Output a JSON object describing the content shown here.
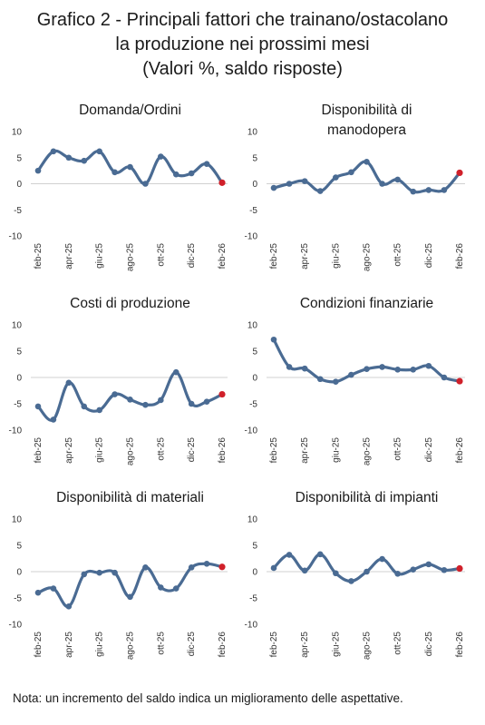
{
  "header": {
    "title_line1": "Grafico 2 - Principali fattori che trainano/ostacolano",
    "title_line2": "la produzione nei prossimi mesi",
    "title_line3": "(Valori %, saldo risposte)"
  },
  "note": "Nota: un incremento del saldo indica un miglioramento delle aspettative.",
  "colors": {
    "line": "#4a6b93",
    "last_point": "#d0202a",
    "zero_line": "#d0d0d0"
  },
  "chart_data": [
    {
      "type": "line",
      "title_lines": [
        "Domanda/Ordini"
      ],
      "x": [
        "feb-25",
        "mar-25",
        "apr-25",
        "mag-25",
        "giu-25",
        "lug-25",
        "ago-25",
        "set-25",
        "ott-25",
        "nov-25",
        "dic-25",
        "gen-26",
        "feb-26"
      ],
      "x_tick_labels": [
        "feb-25",
        "apr-25",
        "giu-25",
        "ago-25",
        "ott-25",
        "dic-25",
        "feb-26"
      ],
      "y_ticks": [
        10,
        5,
        0,
        -5,
        -10
      ],
      "ylim": [
        -10,
        10
      ],
      "values": [
        2.5,
        6.2,
        5.0,
        4.4,
        6.2,
        2.2,
        3.2,
        0.0,
        5.2,
        1.8,
        2.0,
        3.8,
        0.2
      ]
    },
    {
      "type": "line",
      "title_lines": [
        "Disponibilità di",
        "manodopera"
      ],
      "x": [
        "feb-25",
        "mar-25",
        "apr-25",
        "mag-25",
        "giu-25",
        "lug-25",
        "ago-25",
        "set-25",
        "ott-25",
        "nov-25",
        "dic-25",
        "gen-26",
        "feb-26"
      ],
      "x_tick_labels": [
        "feb-25",
        "apr-25",
        "giu-25",
        "ago-25",
        "ott-25",
        "dic-25",
        "feb-26"
      ],
      "y_ticks": [
        10,
        5,
        0,
        -5,
        -10
      ],
      "ylim": [
        -10,
        10
      ],
      "values": [
        -0.8,
        0.0,
        0.5,
        -1.4,
        1.2,
        2.2,
        4.2,
        0.0,
        0.8,
        -1.5,
        -1.2,
        -1.2,
        2.1
      ]
    },
    {
      "type": "line",
      "title_lines": [
        "Costi di produzione"
      ],
      "x": [
        "feb-25",
        "mar-25",
        "apr-25",
        "mag-25",
        "giu-25",
        "lug-25",
        "ago-25",
        "set-25",
        "ott-25",
        "nov-25",
        "dic-25",
        "gen-26",
        "feb-26"
      ],
      "x_tick_labels": [
        "feb-25",
        "apr-25",
        "giu-25",
        "ago-25",
        "ott-25",
        "dic-25",
        "feb-26"
      ],
      "y_ticks": [
        10,
        5,
        0,
        -5,
        -10
      ],
      "ylim": [
        -10,
        10
      ],
      "values": [
        -5.5,
        -8.0,
        -1.0,
        -5.5,
        -6.2,
        -3.2,
        -4.2,
        -5.2,
        -4.3,
        1.0,
        -5.0,
        -4.6,
        -3.2
      ]
    },
    {
      "type": "line",
      "title_lines": [
        "Condizioni finanziarie"
      ],
      "x": [
        "feb-25",
        "mar-25",
        "apr-25",
        "mag-25",
        "giu-25",
        "lug-25",
        "ago-25",
        "set-25",
        "ott-25",
        "nov-25",
        "dic-25",
        "gen-26",
        "feb-26"
      ],
      "x_tick_labels": [
        "feb-25",
        "apr-25",
        "giu-25",
        "ago-25",
        "ott-25",
        "dic-25",
        "feb-26"
      ],
      "y_ticks": [
        10,
        5,
        0,
        -5,
        -10
      ],
      "ylim": [
        -10,
        10
      ],
      "values": [
        7.2,
        2.0,
        1.7,
        -0.3,
        -0.8,
        0.5,
        1.6,
        2.0,
        1.5,
        1.5,
        2.2,
        0.0,
        -0.7
      ]
    },
    {
      "type": "line",
      "title_lines": [
        "Disponibilità di materiali"
      ],
      "x": [
        "feb-25",
        "mar-25",
        "apr-25",
        "mag-25",
        "giu-25",
        "lug-25",
        "ago-25",
        "set-25",
        "ott-25",
        "nov-25",
        "dic-25",
        "gen-26",
        "feb-26"
      ],
      "x_tick_labels": [
        "feb-25",
        "apr-25",
        "giu-25",
        "ago-25",
        "ott-25",
        "dic-25",
        "feb-26"
      ],
      "y_ticks": [
        10,
        5,
        0,
        -5,
        -10
      ],
      "ylim": [
        -10,
        10
      ],
      "values": [
        -4.0,
        -3.2,
        -6.6,
        -0.5,
        -0.2,
        -0.2,
        -4.8,
        0.8,
        -3.0,
        -3.2,
        0.8,
        1.5,
        0.9
      ]
    },
    {
      "type": "line",
      "title_lines": [
        "Disponibilità di impianti"
      ],
      "x": [
        "feb-25",
        "mar-25",
        "apr-25",
        "mag-25",
        "giu-25",
        "lug-25",
        "ago-25",
        "set-25",
        "ott-25",
        "nov-25",
        "dic-25",
        "gen-26",
        "feb-26"
      ],
      "x_tick_labels": [
        "feb-25",
        "apr-25",
        "giu-25",
        "ago-25",
        "ott-25",
        "dic-25",
        "feb-26"
      ],
      "y_ticks": [
        10,
        5,
        0,
        -5,
        -10
      ],
      "ylim": [
        -10,
        10
      ],
      "values": [
        0.7,
        3.2,
        0.2,
        3.3,
        -0.3,
        -1.8,
        0.0,
        2.4,
        -0.4,
        0.4,
        1.4,
        0.3,
        0.6
      ]
    }
  ]
}
